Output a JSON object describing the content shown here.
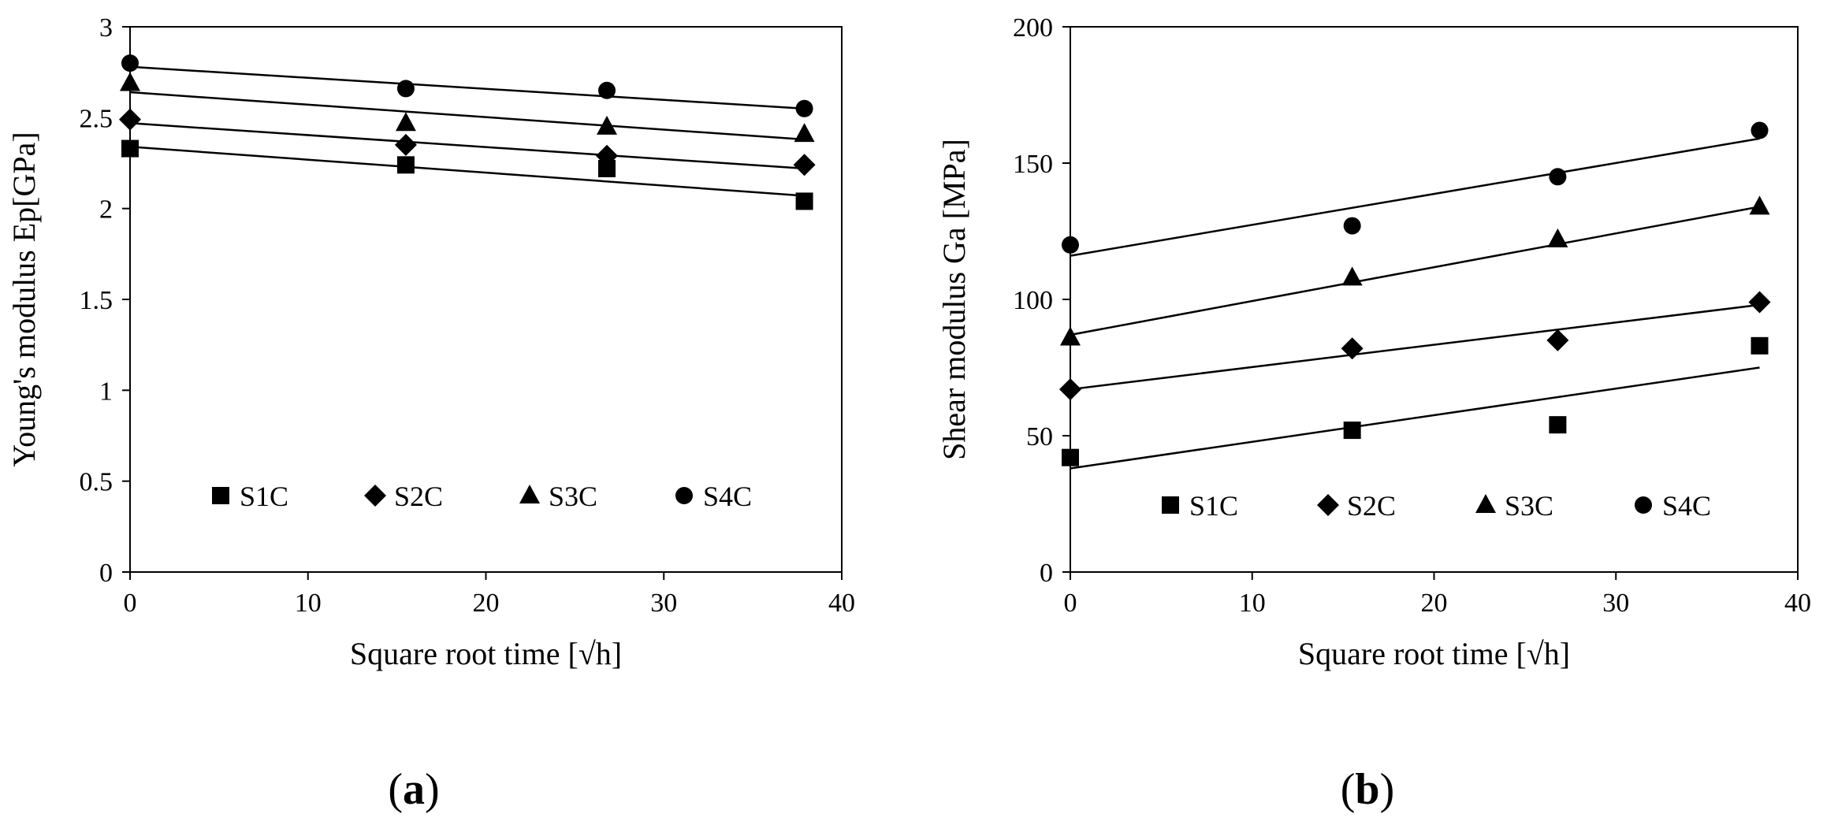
{
  "chart_data": [
    {
      "type": "scatter",
      "panel_label": "a",
      "title": "",
      "xlabel": "Square root time [√h]",
      "ylabel": "Young's modulus Ep[GPa]",
      "xlim": [
        0,
        40
      ],
      "ylim": [
        0,
        3
      ],
      "xticks": [
        0,
        10,
        20,
        30,
        40
      ],
      "yticks": [
        0,
        0.5,
        1,
        1.5,
        2,
        2.5,
        3
      ],
      "legend_position": "bottom, inside plot",
      "trendline": "linear",
      "series": [
        {
          "name": "S1C",
          "marker": "square",
          "x": [
            0,
            15.5,
            26.8,
            37.9
          ],
          "y": [
            2.33,
            2.24,
            2.22,
            2.04
          ],
          "fit": [
            2.34,
            2.07
          ]
        },
        {
          "name": "S2C",
          "marker": "diamond",
          "x": [
            0,
            15.5,
            26.8,
            37.9
          ],
          "y": [
            2.49,
            2.35,
            2.29,
            2.24
          ],
          "fit": [
            2.47,
            2.22
          ]
        },
        {
          "name": "S3C",
          "marker": "triangle",
          "x": [
            0,
            15.5,
            26.8,
            37.9
          ],
          "y": [
            2.69,
            2.47,
            2.45,
            2.41
          ],
          "fit": [
            2.64,
            2.38
          ]
        },
        {
          "name": "S4C",
          "marker": "circle",
          "x": [
            0,
            15.5,
            26.8,
            37.9
          ],
          "y": [
            2.8,
            2.66,
            2.65,
            2.55
          ],
          "fit": [
            2.78,
            2.55
          ]
        }
      ]
    },
    {
      "type": "scatter",
      "panel_label": "b",
      "title": "",
      "xlabel": "Square root time [√h]",
      "ylabel": "Shear modulus Ga [MPa]",
      "xlim": [
        0,
        40
      ],
      "ylim": [
        0,
        200
      ],
      "xticks": [
        0,
        10,
        20,
        30,
        40
      ],
      "yticks": [
        0,
        50,
        100,
        150,
        200
      ],
      "legend_position": "bottom, inside plot",
      "trendline": "linear",
      "series": [
        {
          "name": "S1C",
          "marker": "square",
          "x": [
            0,
            15.5,
            26.8,
            37.9
          ],
          "y": [
            42,
            52,
            54,
            83
          ],
          "fit": [
            38,
            75
          ]
        },
        {
          "name": "S2C",
          "marker": "diamond",
          "x": [
            0,
            15.5,
            26.8,
            37.9
          ],
          "y": [
            67,
            82,
            85,
            99
          ],
          "fit": [
            67,
            98
          ]
        },
        {
          "name": "S3C",
          "marker": "triangle",
          "x": [
            0,
            15.5,
            26.8,
            37.9
          ],
          "y": [
            86,
            108,
            122,
            134
          ],
          "fit": [
            87,
            134
          ]
        },
        {
          "name": "S4C",
          "marker": "circle",
          "x": [
            0,
            15.5,
            26.8,
            37.9
          ],
          "y": [
            120,
            127,
            145,
            162
          ],
          "fit": [
            116,
            159
          ]
        }
      ]
    }
  ]
}
